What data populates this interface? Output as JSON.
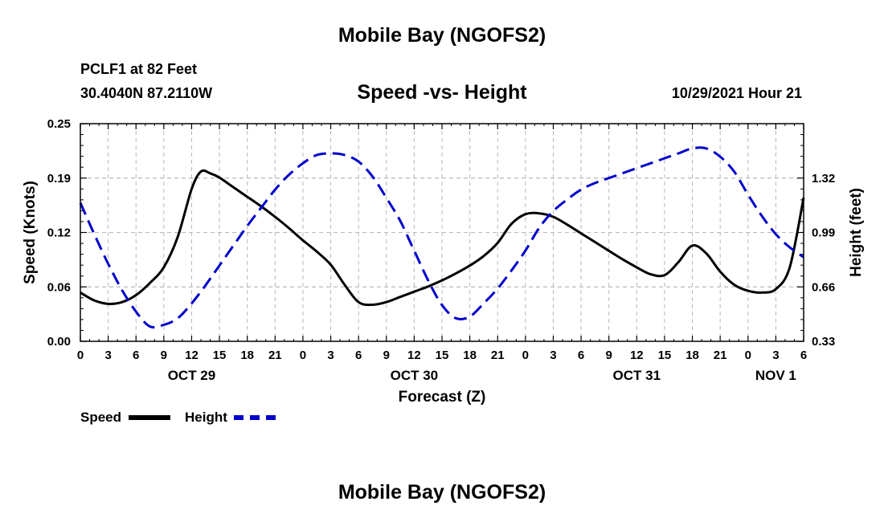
{
  "page": {
    "title": "Mobile Bay (NGOFS2)",
    "title_repeat": "Mobile Bay (NGOFS2)",
    "station": "PCLF1 at 82 Feet",
    "latlon": "30.4040N  87.2110W",
    "subtitle": "Speed -vs- Height",
    "datetime": "10/29/2021 Hour 21"
  },
  "legend": {
    "speed_label": "Speed",
    "height_label": "Height"
  },
  "chart_data": {
    "type": "line",
    "xlabel": "Forecast (Z)",
    "ylabel_left": "Speed (Knots)",
    "ylabel_right": "Height (feet)",
    "x_unit": "hours from Oct 29 00Z",
    "xlim": [
      0,
      78
    ],
    "ylim_left": [
      0.0,
      0.25
    ],
    "ylim_right": [
      0.33,
      1.65
    ],
    "yticks_left": [
      "0.00",
      "0.06",
      "0.12",
      "0.19",
      "0.25"
    ],
    "yticks_left_values": [
      0.0,
      0.0625,
      0.125,
      0.1875,
      0.25
    ],
    "yticks_right": [
      "0.33",
      "0.66",
      "0.99",
      "1.32"
    ],
    "yticks_right_values": [
      0.33,
      0.66,
      0.99,
      1.32
    ],
    "x_tick_labels": [
      "0",
      "3",
      "6",
      "9",
      "12",
      "15",
      "18",
      "21",
      "0",
      "3",
      "6",
      "9",
      "12",
      "15",
      "18",
      "21",
      "0",
      "3",
      "6",
      "9",
      "12",
      "15",
      "18",
      "21",
      "0",
      "3",
      "6"
    ],
    "date_labels": [
      {
        "label": "OCT 29",
        "x": 12
      },
      {
        "label": "OCT 30",
        "x": 36
      },
      {
        "label": "OCT 31",
        "x": 60
      },
      {
        "label": "NOV 1",
        "x": 75
      }
    ],
    "grid": true,
    "series": [
      {
        "name": "Speed",
        "axis": "left",
        "color": "#000000",
        "style": "solid",
        "x": [
          0,
          1.5,
          3,
          4.5,
          6,
          7.5,
          9,
          10.5,
          12,
          13,
          14,
          15,
          16.5,
          18,
          19.5,
          21,
          22.5,
          24,
          25.5,
          27,
          28.5,
          30,
          31.5,
          33,
          34.5,
          36,
          37.5,
          39,
          40.5,
          42,
          43.5,
          45,
          46.5,
          48,
          49.5,
          51,
          52.5,
          54,
          55.5,
          57,
          58.5,
          60,
          61.5,
          63,
          64.5,
          66,
          67.5,
          69,
          70.5,
          72,
          73.5,
          75,
          76.5,
          78
        ],
        "y": [
          0.056,
          0.047,
          0.043,
          0.045,
          0.053,
          0.067,
          0.085,
          0.12,
          0.175,
          0.195,
          0.193,
          0.188,
          0.177,
          0.166,
          0.155,
          0.143,
          0.13,
          0.116,
          0.103,
          0.088,
          0.065,
          0.045,
          0.042,
          0.045,
          0.051,
          0.057,
          0.063,
          0.07,
          0.078,
          0.087,
          0.098,
          0.113,
          0.135,
          0.146,
          0.147,
          0.143,
          0.134,
          0.124,
          0.114,
          0.104,
          0.094,
          0.085,
          0.077,
          0.076,
          0.091,
          0.11,
          0.101,
          0.08,
          0.065,
          0.058,
          0.056,
          0.06,
          0.085,
          0.165
        ]
      },
      {
        "name": "Height",
        "axis": "right",
        "color": "#0000cc",
        "style": "dashed",
        "x": [
          0,
          1.5,
          3,
          4.5,
          6,
          7.5,
          9,
          10.5,
          12,
          13.5,
          15,
          16.5,
          18,
          19.5,
          21,
          22.5,
          24,
          25.5,
          27,
          28.5,
          30,
          31.5,
          33,
          34.5,
          36,
          37.5,
          39,
          40.5,
          42,
          43.5,
          45,
          46.5,
          48,
          49.5,
          51,
          52.5,
          54,
          55.5,
          57,
          58.5,
          60,
          61.5,
          63,
          64.5,
          66,
          67.5,
          69,
          70.5,
          72,
          73.5,
          75,
          76.5,
          78
        ],
        "y": [
          1.17,
          0.98,
          0.8,
          0.64,
          0.51,
          0.42,
          0.43,
          0.47,
          0.56,
          0.67,
          0.79,
          0.91,
          1.03,
          1.14,
          1.25,
          1.34,
          1.41,
          1.46,
          1.47,
          1.46,
          1.42,
          1.33,
          1.2,
          1.06,
          0.88,
          0.7,
          0.55,
          0.47,
          0.48,
          0.56,
          0.65,
          0.76,
          0.88,
          1.02,
          1.12,
          1.19,
          1.25,
          1.29,
          1.32,
          1.35,
          1.38,
          1.41,
          1.44,
          1.47,
          1.5,
          1.5,
          1.45,
          1.36,
          1.22,
          1.09,
          0.98,
          0.9,
          0.84
        ]
      }
    ]
  }
}
